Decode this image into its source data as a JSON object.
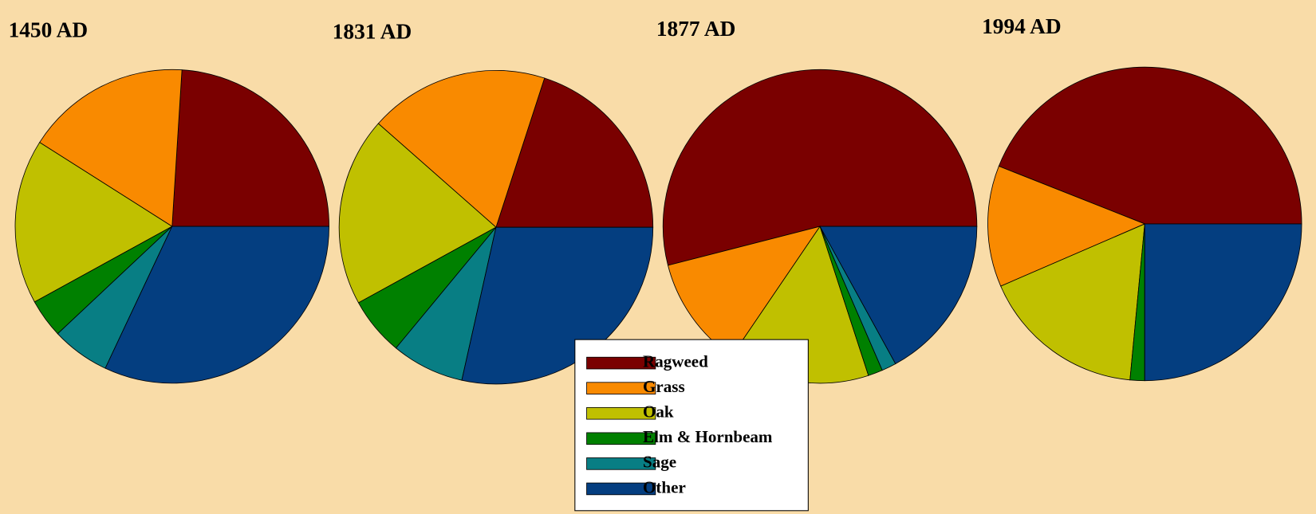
{
  "chart_data": [
    {
      "type": "pie",
      "title": "1450 AD",
      "categories": [
        "Ragweed",
        "Grass",
        "Oak",
        "Elm & Hornbeam",
        "Sage",
        "Other"
      ],
      "values": [
        24,
        17,
        17,
        4,
        6,
        32
      ],
      "colors": [
        "#7a0000",
        "#f98a00",
        "#c0c000",
        "#008000",
        "#087e84",
        "#043e80"
      ]
    },
    {
      "type": "pie",
      "title": "1831 AD",
      "categories": [
        "Ragweed",
        "Grass",
        "Oak",
        "Elm & Hornbeam",
        "Sage",
        "Other"
      ],
      "values": [
        20,
        18.5,
        19.5,
        6,
        7.5,
        28.5
      ],
      "colors": [
        "#7a0000",
        "#f98a00",
        "#c0c000",
        "#008000",
        "#087e84",
        "#043e80"
      ]
    },
    {
      "type": "pie",
      "title": "1877 AD",
      "categories": [
        "Ragweed",
        "Grass",
        "Oak",
        "Elm & Hornbeam",
        "Sage",
        "Other"
      ],
      "values": [
        54,
        11.5,
        14.5,
        1.5,
        1.5,
        17
      ],
      "colors": [
        "#7a0000",
        "#f98a00",
        "#c0c000",
        "#008000",
        "#087e84",
        "#043e80"
      ]
    },
    {
      "type": "pie",
      "title": "1994 AD",
      "categories": [
        "Ragweed",
        "Grass",
        "Oak",
        "Elm & Hornbeam",
        "Sage",
        "Other"
      ],
      "values": [
        44,
        12.5,
        17,
        1.5,
        0,
        25
      ],
      "colors": [
        "#7a0000",
        "#f98a00",
        "#c0c000",
        "#008000",
        "#087e84",
        "#043e80"
      ]
    }
  ]
}
